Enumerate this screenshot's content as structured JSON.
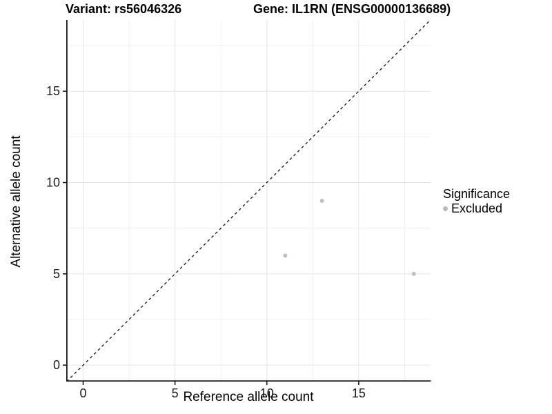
{
  "chart_data": {
    "type": "scatter",
    "title_left": "Variant: rs56046326",
    "title_right": "Gene: IL1RN (ENSG00000136689)",
    "xlabel": "Reference allele count",
    "ylabel": "Alternative allele count",
    "xlim": [
      -0.92,
      18.93
    ],
    "ylim": [
      -0.9,
      18.9
    ],
    "x_major_ticks": [
      0,
      5,
      10,
      15
    ],
    "y_major_ticks": [
      0,
      5,
      10,
      15
    ],
    "x_minor_ticks": [
      2.5,
      7.5,
      12.5,
      17.5
    ],
    "y_minor_ticks": [
      2.5,
      7.5,
      12.5,
      17.5
    ],
    "grid": true,
    "reference_line": {
      "slope": 1,
      "intercept": 0,
      "style": "dashed",
      "color": "#111111"
    },
    "series": [
      {
        "name": "Excluded",
        "color": "#bfbfbf",
        "points": [
          [
            11,
            6
          ],
          [
            13,
            9
          ],
          [
            18,
            5
          ]
        ]
      }
    ],
    "point_radius": 3,
    "legend": {
      "title": "Significance",
      "position": "right",
      "entries": [
        {
          "label": "Excluded",
          "color": "#b9b9b9"
        }
      ]
    },
    "colors": {
      "grid_major": "#e4e4e4",
      "grid_minor": "#efefef",
      "axis_line": "#1a1a1a",
      "tick_label": "#1a1a1a",
      "background": "#ffffff"
    }
  }
}
